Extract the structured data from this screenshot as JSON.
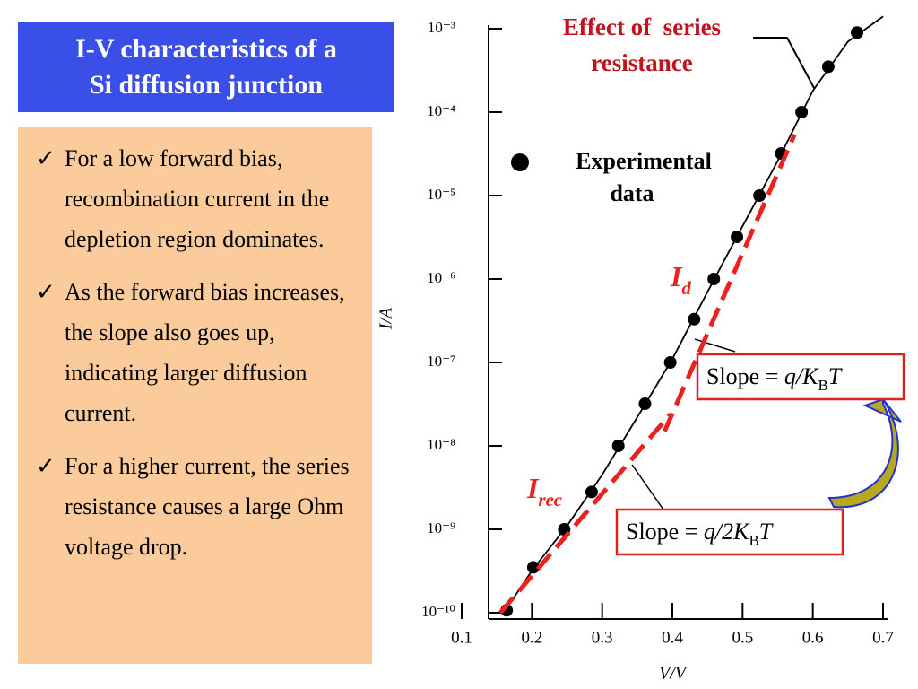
{
  "slide": {
    "title_lines": [
      "I-V characteristics of  a",
      "Si diffusion junction"
    ],
    "bullets": [
      "For a  low forward bias, recombination current in the depletion region dominates.",
      "As the forward bias increases, the slope also goes up, indicating larger diffusion current.",
      "For a higher current, the series resistance causes a large Ohm voltage drop."
    ]
  },
  "chart_data": {
    "type": "scatter",
    "log_y": true,
    "xlabel": "V/V",
    "ylabel": "I/A",
    "xlim": [
      0.1,
      0.7
    ],
    "ylim": [
      1e-10,
      0.001
    ],
    "xticks": [
      0.1,
      0.2,
      0.3,
      0.4,
      0.5,
      0.6,
      0.7
    ],
    "yticks": [
      {
        "value": 0.001,
        "label": "10⁻³"
      },
      {
        "value": 0.0001,
        "label": "10⁻⁴"
      },
      {
        "value": 1e-05,
        "label": "10⁻⁵"
      },
      {
        "value": 1e-06,
        "label": "10⁻⁶"
      },
      {
        "value": 1e-07,
        "label": "10⁻⁷"
      },
      {
        "value": 1e-08,
        "label": "10⁻⁸"
      },
      {
        "value": 1e-09,
        "label": "10⁻⁹"
      },
      {
        "value": 1e-10,
        "label": "10⁻¹⁰"
      }
    ],
    "series": [
      {
        "name": "Experimental data",
        "kind": "points",
        "color": "#000000",
        "x": [
          0.164,
          0.202,
          0.246,
          0.285,
          0.323,
          0.361,
          0.397,
          0.431,
          0.459,
          0.492,
          0.524,
          0.555,
          0.584,
          0.622,
          0.663
        ],
        "y": [
          1.07e-10,
          3.5e-10,
          1e-09,
          2.8e-09,
          1e-08,
          3.2e-08,
          1e-07,
          3.3e-07,
          1e-06,
          3.2e-06,
          1e-05,
          3.2e-05,
          0.0001,
          0.00035,
          0.0009
        ]
      },
      {
        "kind": "curve",
        "color": "#000000",
        "x": [
          0.16,
          0.2,
          0.25,
          0.3,
          0.35,
          0.4,
          0.45,
          0.5,
          0.55,
          0.6,
          0.65,
          0.7
        ],
        "y": [
          1e-10,
          3.2e-10,
          1.1e-09,
          4.5e-09,
          2.2e-08,
          1.1e-07,
          7e-07,
          4.3e-06,
          2.6e-05,
          0.00018,
          0.0007,
          0.0014
        ]
      },
      {
        "kind": "dashed",
        "color": "#e8221c",
        "label": {
          "main": "I",
          "sub": "rec"
        },
        "x": [
          0.155,
          0.397
        ],
        "y": [
          1e-10,
          2.4e-08
        ]
      },
      {
        "kind": "dashed",
        "color": "#e8221c",
        "label": {
          "main": "I",
          "sub": "d"
        },
        "x": [
          0.389,
          0.574
        ],
        "y": [
          1.5e-08,
          5.4e-05
        ]
      }
    ],
    "annotations": {
      "series_resistance": [
        "Effect of  series",
        "resistance"
      ],
      "slope_d": {
        "text": "Slope = ",
        "q": "q/K",
        "sub": "B",
        "t": "T"
      },
      "slope_rec": {
        "text": "Slope = ",
        "q": "q/2K",
        "sub": "B",
        "t": "T"
      }
    }
  }
}
